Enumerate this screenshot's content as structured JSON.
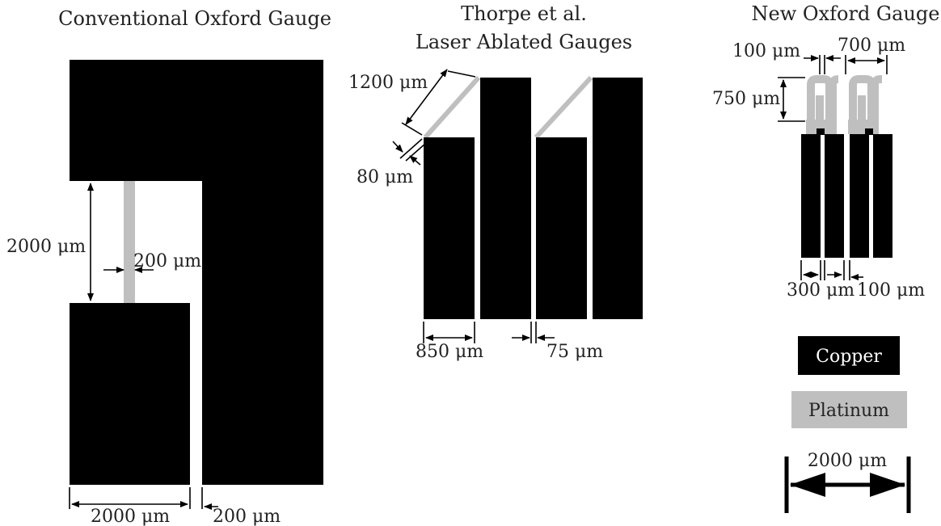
{
  "colors": {
    "copper": "#000000",
    "platinum": "#bfbfbf",
    "line": "#000000",
    "background": "#ffffff"
  },
  "panels": {
    "conventional": {
      "title": "Conventional Oxford Gauge",
      "dim_gap": "2000 μm",
      "dim_strip": "200 μm",
      "dim_bottom_left": "2000 μm",
      "dim_bottom_right": "200 μm"
    },
    "thorpe": {
      "title_line1": "Thorpe et al.",
      "title_line2": "Laser Ablated Gauges",
      "dim_diagonal": "1200 μm",
      "dim_thickness": "80 μm",
      "dim_width": "850 μm",
      "dim_gap": "75 μm"
    },
    "new_oxford": {
      "title": "New Oxford Gauge",
      "dim_top_small": "100 μm",
      "dim_top_large": "700 μm",
      "dim_height": "750 μm",
      "dim_bottom_width": "300 μm",
      "dim_bottom_gap": "100 μm"
    }
  },
  "legend": {
    "copper_label": "Copper",
    "platinum_label": "Platinum",
    "scale_label": "2000 μm"
  }
}
